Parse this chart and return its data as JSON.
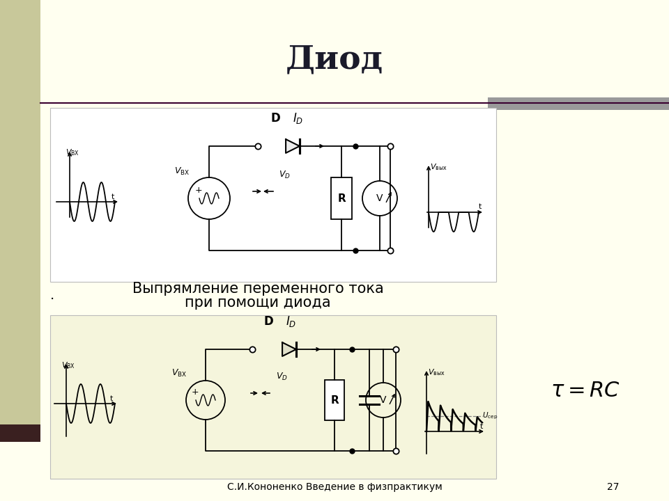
{
  "bg_color": "#FFFFF0",
  "left_bar_color": "#B5B58A",
  "top_bar_color": "#A0A0A0",
  "title": "Диод",
  "title_fontsize": 34,
  "subtitle_line1": "Выпрямление переменного тока",
  "subtitle_line2": "при помощи диода",
  "subtitle_fontsize": 15,
  "footer_text": "С.И.Кононенко Введение в физпрактикум",
  "footer_page": "27",
  "footer_fontsize": 10
}
